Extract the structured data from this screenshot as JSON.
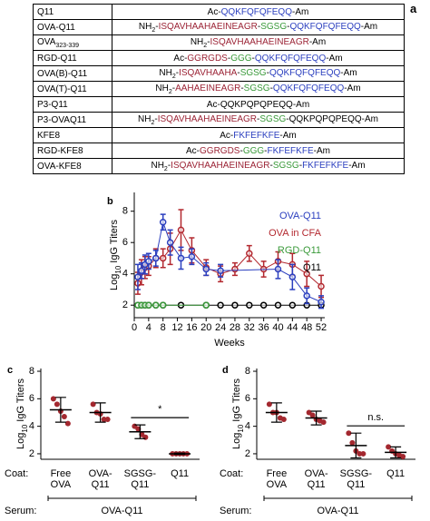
{
  "table": {
    "label": "a",
    "rows": [
      {
        "name": [
          {
            "text": "Q11"
          }
        ],
        "sequence": [
          {
            "text": "Ac-"
          },
          {
            "text": "QQKFQFQFEQQ",
            "color": "#2b3fbf"
          },
          {
            "text": "-Am"
          }
        ]
      },
      {
        "name": [
          {
            "text": "OVA-Q11"
          }
        ],
        "sequence": [
          {
            "text": "NH"
          },
          {
            "text": "2",
            "sub": true
          },
          {
            "text": "-"
          },
          {
            "text": "ISQAVHAAHAEINEAGR",
            "color": "#9b2335"
          },
          {
            "text": "-"
          },
          {
            "text": "SGSG",
            "color": "#3a9a3a"
          },
          {
            "text": "-"
          },
          {
            "text": "QQKFQFQFEQQ",
            "color": "#2b3fbf"
          },
          {
            "text": "-Am"
          }
        ]
      },
      {
        "name": [
          {
            "text": "OVA"
          },
          {
            "text": "323-339",
            "sub": true
          }
        ],
        "sequence": [
          {
            "text": "NH"
          },
          {
            "text": "2",
            "sub": true
          },
          {
            "text": "-"
          },
          {
            "text": "ISQAVHAAHAEINEAGR",
            "color": "#9b2335"
          },
          {
            "text": "-Am"
          }
        ]
      },
      {
        "name": [
          {
            "text": "RGD-Q11"
          }
        ],
        "sequence": [
          {
            "text": "Ac-"
          },
          {
            "text": "GGRGDS",
            "color": "#9b2335"
          },
          {
            "text": "-"
          },
          {
            "text": "GGG",
            "color": "#3a9a3a"
          },
          {
            "text": "-"
          },
          {
            "text": "QQKFQFQFEQQ",
            "color": "#2b3fbf"
          },
          {
            "text": "-Am"
          }
        ]
      },
      {
        "name": [
          {
            "text": "OVA(B)-Q11"
          }
        ],
        "sequence": [
          {
            "text": "NH"
          },
          {
            "text": "2",
            "sub": true
          },
          {
            "text": "-"
          },
          {
            "text": "ISQAVHAAHA",
            "color": "#9b2335"
          },
          {
            "text": "-"
          },
          {
            "text": "SGSG",
            "color": "#3a9a3a"
          },
          {
            "text": "-"
          },
          {
            "text": "QQKFQFQFEQQ",
            "color": "#2b3fbf"
          },
          {
            "text": "-Am"
          }
        ]
      },
      {
        "name": [
          {
            "text": "OVA(T)-Q11"
          }
        ],
        "sequence": [
          {
            "text": "NH"
          },
          {
            "text": "2",
            "sub": true
          },
          {
            "text": "-"
          },
          {
            "text": "AAHAEINEAGR",
            "color": "#9b2335"
          },
          {
            "text": "-"
          },
          {
            "text": "SGSG",
            "color": "#3a9a3a"
          },
          {
            "text": "-"
          },
          {
            "text": "QQKFQFQFEQQ",
            "color": "#2b3fbf"
          },
          {
            "text": "-Am"
          }
        ]
      },
      {
        "name": [
          {
            "text": "P3-Q11"
          }
        ],
        "sequence": [
          {
            "text": "Ac-QQKPQPQPEQQ-Am"
          }
        ]
      },
      {
        "name": [
          {
            "text": "P3-OVAQ11"
          }
        ],
        "sequence": [
          {
            "text": "NH"
          },
          {
            "text": "2",
            "sub": true
          },
          {
            "text": "-"
          },
          {
            "text": "ISQAVHAAHAEINEAGR",
            "color": "#9b2335"
          },
          {
            "text": "-"
          },
          {
            "text": "SGSG",
            "color": "#3a9a3a"
          },
          {
            "text": "-QQKPQPQPEQQ-Am"
          }
        ]
      },
      {
        "name": [
          {
            "text": "KFE8"
          }
        ],
        "sequence": [
          {
            "text": "Ac-"
          },
          {
            "text": "FKFEFKFE",
            "color": "#2b3fbf"
          },
          {
            "text": "-Am"
          }
        ]
      },
      {
        "name": [
          {
            "text": "RGD-KFE8"
          }
        ],
        "sequence": [
          {
            "text": "Ac-"
          },
          {
            "text": "GGRGDS",
            "color": "#9b2335"
          },
          {
            "text": "-"
          },
          {
            "text": "GGG",
            "color": "#3a9a3a"
          },
          {
            "text": "-"
          },
          {
            "text": "FKFEFKFE",
            "color": "#2b3fbf"
          },
          {
            "text": "-Am"
          }
        ]
      },
      {
        "name": [
          {
            "text": "OVA-KFE8"
          }
        ],
        "sequence": [
          {
            "text": "NH"
          },
          {
            "text": "2",
            "sub": true
          },
          {
            "text": "-"
          },
          {
            "text": "ISQAVHAAHAEINEAGR",
            "color": "#9b2335"
          },
          {
            "text": "-"
          },
          {
            "text": "SGSG",
            "color": "#3a9a3a"
          },
          {
            "text": "-"
          },
          {
            "text": "FKFEFKFE",
            "color": "#2b3fbf"
          },
          {
            "text": "-Am"
          }
        ]
      }
    ]
  },
  "chart_data": [
    {
      "type": "line",
      "panel": "b",
      "xlabel": "Weeks",
      "ylabel": [
        {
          "text": "Log"
        },
        {
          "text": "10",
          "sub": true
        },
        {
          "text": "IgG Titers"
        }
      ],
      "xlim": [
        0,
        53
      ],
      "xticks": [
        0,
        4,
        8,
        12,
        16,
        20,
        24,
        28,
        32,
        36,
        40,
        44,
        48,
        52
      ],
      "ylim": [
        1.2,
        9.2
      ],
      "yticks": [
        2,
        4,
        6,
        8
      ],
      "legend": "upper right",
      "series": [
        {
          "name": "OVA-Q11",
          "color": "#2b3fbf",
          "x": [
            1,
            2,
            3,
            4,
            6,
            8,
            10,
            13,
            16,
            20,
            24,
            40,
            44,
            48,
            52
          ],
          "values": [
            3.8,
            4.2,
            4.6,
            4.8,
            5.0,
            7.3,
            6.0,
            5.0,
            5.1,
            4.3,
            4.2,
            4.3,
            3.8,
            2.6,
            2.2
          ],
          "errors": [
            0.8,
            0.5,
            0.6,
            0.5,
            0.5,
            0.5,
            0.8,
            0.7,
            0.5,
            0.4,
            0.4,
            0.6,
            0.8,
            0.5,
            0.4
          ]
        },
        {
          "name": "OVA in CFA",
          "color": "#b3282f",
          "x": [
            1,
            2,
            3,
            4,
            6,
            8,
            10,
            13,
            16,
            20,
            24,
            28,
            32,
            36,
            40,
            44,
            48,
            52
          ],
          "values": [
            3.4,
            4.1,
            4.4,
            4.5,
            5.0,
            5.0,
            5.6,
            6.8,
            5.5,
            4.4,
            4.0,
            4.3,
            5.3,
            4.3,
            4.8,
            4.6,
            4.0,
            3.2
          ],
          "errors": [
            0.7,
            0.8,
            0.7,
            0.6,
            0.6,
            0.6,
            1.0,
            1.3,
            0.8,
            0.5,
            0.5,
            0.4,
            0.5,
            0.5,
            0.6,
            0.7,
            0.8,
            0.7
          ]
        },
        {
          "name": "RGD-Q11",
          "color": "#3a9a3a",
          "x": [
            1,
            2,
            3,
            4,
            6,
            8,
            20
          ],
          "values": [
            2,
            2,
            2,
            2,
            2,
            2,
            2
          ]
        },
        {
          "name": "Q11",
          "color": "#000000",
          "x": [
            1,
            2,
            3,
            4,
            6,
            8,
            13,
            20,
            24,
            28,
            32,
            36,
            40,
            44,
            48,
            52
          ],
          "values": [
            2,
            2,
            2,
            2,
            2,
            2,
            2,
            2,
            2,
            2,
            2,
            2,
            2,
            2,
            2,
            2
          ]
        }
      ]
    },
    {
      "type": "dot",
      "panel": "c",
      "ylabel": [
        {
          "text": "Log"
        },
        {
          "text": "10",
          "sub": true
        },
        {
          "text": "IgG Titers"
        }
      ],
      "ylim": [
        1.6,
        8.2
      ],
      "yticks": [
        2,
        4,
        6,
        8
      ],
      "color": "#a3282f",
      "coat_label": "Coat:",
      "serum_label": "Serum:",
      "serum": "OVA-Q11",
      "annotation": "*",
      "categories": [
        [
          "Free",
          "OVA"
        ],
        [
          "OVA-",
          "Q11"
        ],
        [
          "SGSG-",
          "Q11"
        ],
        [
          "Q11"
        ]
      ],
      "points": [
        [
          6.0,
          5.6,
          5.1,
          4.7,
          4.2
        ],
        [
          5.6,
          5.0,
          4.9,
          4.5,
          4.5
        ],
        [
          4.0,
          3.8,
          3.4,
          3.2
        ],
        [
          2.0,
          2.0,
          2.0,
          2.0,
          2.0
        ]
      ],
      "means": [
        5.2,
        5.0,
        3.6,
        2.0
      ],
      "sds": [
        0.9,
        0.7,
        0.5,
        0.05
      ]
    },
    {
      "type": "dot",
      "panel": "d",
      "ylabel": [
        {
          "text": "Log"
        },
        {
          "text": "10",
          "sub": true
        },
        {
          "text": "IgG Titers"
        }
      ],
      "ylim": [
        1.6,
        8.2
      ],
      "yticks": [
        2,
        4,
        6,
        8
      ],
      "color": "#a3282f",
      "coat_label": "Coat:",
      "serum_label": "Serum:",
      "serum": "OVA-Q11",
      "annotation": "n.s.",
      "categories": [
        [
          "Free",
          "OVA"
        ],
        [
          "OVA-",
          "Q11"
        ],
        [
          "SGSG-",
          "Q11"
        ],
        [
          "Q11"
        ]
      ],
      "points": [
        [
          5.6,
          5.0,
          5.0,
          4.6,
          4.5
        ],
        [
          5.0,
          4.8,
          4.5,
          4.4,
          4.3
        ],
        [
          3.5,
          2.8,
          2.2,
          2.0,
          2.0
        ],
        [
          2.5,
          2.2,
          2.0,
          1.9,
          1.8
        ]
      ],
      "means": [
        5.0,
        4.6,
        2.6,
        2.1
      ],
      "sds": [
        0.7,
        0.5,
        0.9,
        0.4
      ]
    }
  ]
}
